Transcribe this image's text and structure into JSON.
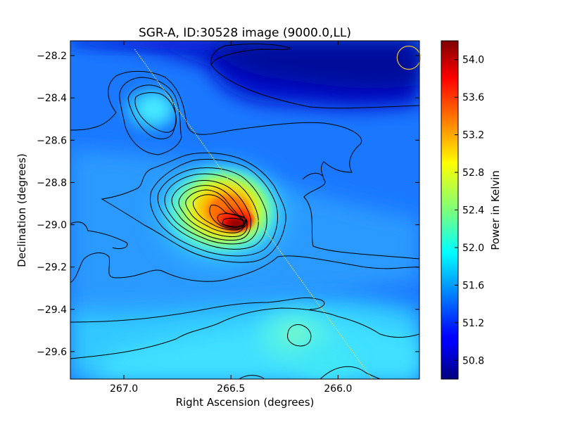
{
  "chart_data": {
    "type": "heatmap",
    "title": "SGR-A, ID:30528 image (9000.0,LL)",
    "xlabel": "Right Ascension (degrees)",
    "ylabel": "Declination (degrees)",
    "colorbar_label": "Power in Kelvin",
    "xlim": [
      267.25,
      265.62
    ],
    "ylim": [
      -29.73,
      -28.13
    ],
    "x_axis_reversed": true,
    "x_ticks": [
      267.0,
      266.5,
      266.0
    ],
    "x_tick_labels": [
      "267.0",
      "266.5",
      "266.0"
    ],
    "y_ticks": [
      -28.2,
      -28.4,
      -28.6,
      -28.8,
      -29.0,
      -29.2,
      -29.4,
      -29.6
    ],
    "y_tick_labels": [
      "−28.2",
      "−28.4",
      "−28.6",
      "−28.8",
      "−29.0",
      "−29.2",
      "−29.4",
      "−29.6"
    ],
    "colorbar_range": [
      50.6,
      54.2
    ],
    "colorbar_ticks": [
      50.8,
      51.2,
      51.6,
      52.0,
      52.4,
      52.8,
      53.2,
      53.6,
      54.0
    ],
    "colorbar_tick_labels": [
      "50.8",
      "51.2",
      "51.6",
      "52.0",
      "52.4",
      "52.8",
      "53.2",
      "53.6",
      "54.0"
    ],
    "colormap": "jet",
    "peak": {
      "ra": 266.45,
      "dec": -29.0,
      "value": 54.2
    },
    "secondary_peak": {
      "ra": 266.8,
      "dec": -28.45,
      "value": 52.0
    },
    "galactic_plane_line": {
      "start": {
        "ra": 266.95,
        "dec": -28.17
      },
      "end": {
        "ra": 265.84,
        "dec": -29.73
      },
      "color": "#d8d860"
    },
    "beam_circle": {
      "ra": 265.67,
      "dec": -28.21,
      "color": "#d8b83a"
    },
    "grid": false,
    "legend": "none"
  }
}
